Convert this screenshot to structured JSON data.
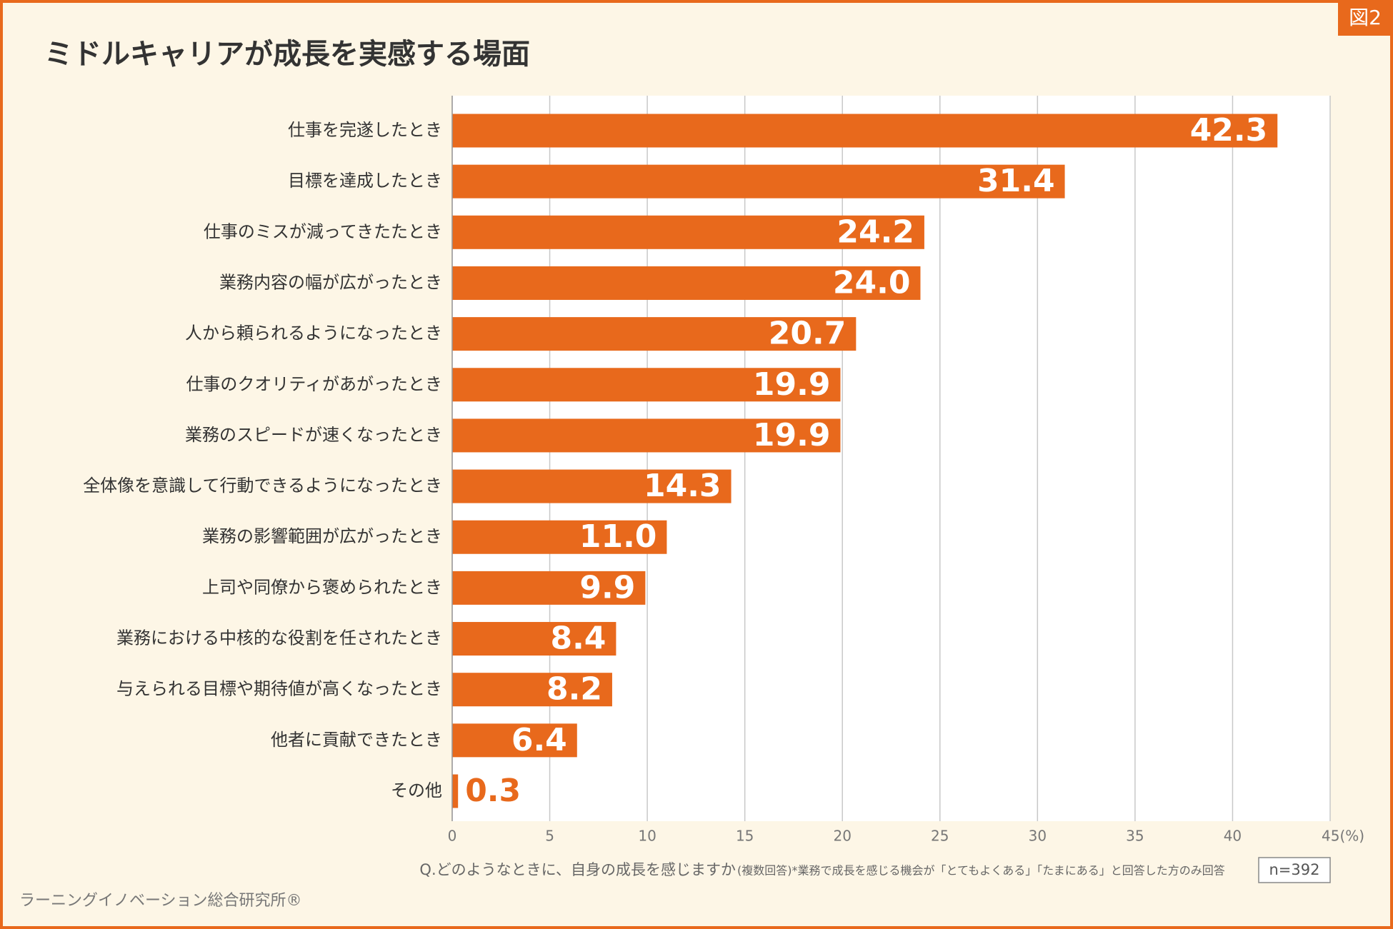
{
  "chart_data": {
    "type": "bar",
    "orientation": "horizontal",
    "badge": "図2",
    "title": "ミドルキャリアが成長を実感する場面",
    "categories": [
      "仕事を完遂したとき",
      "目標を達成したとき",
      "仕事のミスが減ってきたたとき",
      "業務内容の幅が広がったとき",
      "人から頼られるようになったとき",
      "仕事のクオリティがあがったとき",
      "業務のスピードが速くなったとき",
      "全体像を意識して行動できるようになったとき",
      "業務の影響範囲が広がったとき",
      "上司や同僚から褒められたとき",
      "業務における中核的な役割を任されたとき",
      "与えられる目標や期待値が高くなったとき",
      "他者に貢献できたとき",
      "その他"
    ],
    "values": [
      42.3,
      31.4,
      24.2,
      24.0,
      20.7,
      19.9,
      19.9,
      14.3,
      11.0,
      9.9,
      8.4,
      8.2,
      6.4,
      0.3
    ],
    "value_labels": [
      "42.3",
      "31.4",
      "24.2",
      "24.0",
      "20.7",
      "19.9",
      "19.9",
      "14.3",
      "11.0",
      "9.9",
      "8.4",
      "8.2",
      "6.4",
      "0.3"
    ],
    "color": "#e8691c",
    "xlim": [
      0,
      45
    ],
    "xticks": [
      0,
      5,
      10,
      15,
      20,
      25,
      30,
      35,
      40,
      {
        "value": 45,
        "label": "45(%)"
      }
    ],
    "grid": true,
    "question": "Q.どのようなときに、自身の成長を感じますか",
    "note": "(複数回答)*業務で成長を感じる機会が「とてもよくある」「たまにある」と回答した方のみ回答",
    "sample": "n=392",
    "source": "ラーニングイノベーション総合研究所®"
  }
}
